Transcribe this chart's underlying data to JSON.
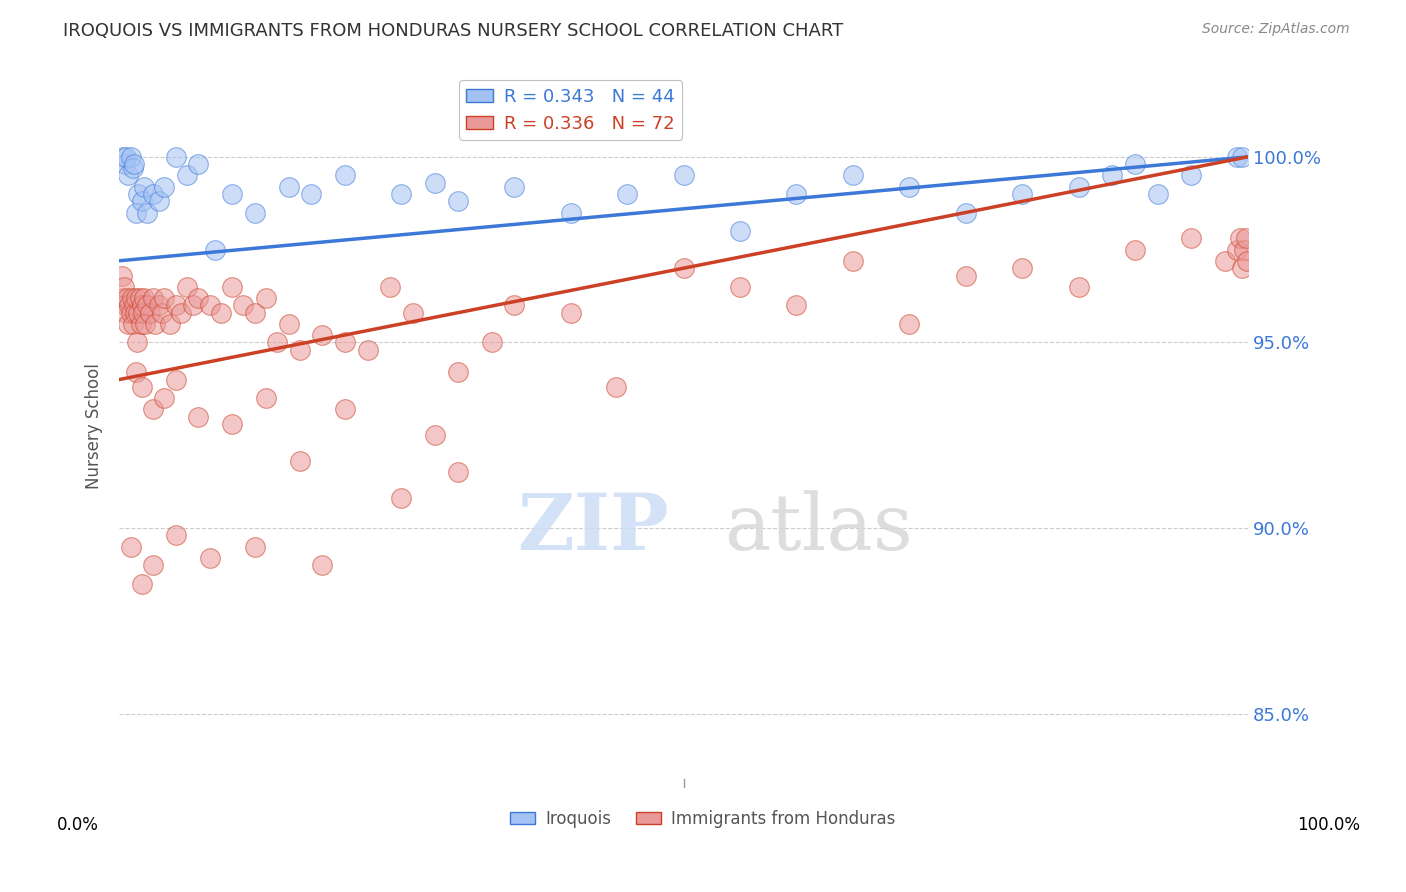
{
  "title": "IROQUOIS VS IMMIGRANTS FROM HONDURAS NURSERY SCHOOL CORRELATION CHART",
  "source": "Source: ZipAtlas.com",
  "ylabel": "Nursery School",
  "ytick_values": [
    85.0,
    90.0,
    95.0,
    100.0
  ],
  "ytick_labels": [
    "85.0%",
    "90.0%",
    "95.0%",
    "100.0%"
  ],
  "xlim": [
    0.0,
    100.0
  ],
  "ylim": [
    83.0,
    102.5
  ],
  "legend_blue_label": "R = 0.343   N = 44",
  "legend_pink_label": "R = 0.336   N = 72",
  "blue_color": "#a4c2f4",
  "pink_color": "#ea9999",
  "blue_line_color": "#3c78d8",
  "pink_line_color": "#cc4125",
  "blue_scatter_x": [
    0.3,
    0.5,
    0.6,
    0.8,
    1.0,
    1.2,
    1.3,
    1.5,
    1.7,
    2.0,
    2.2,
    2.5,
    3.0,
    3.5,
    4.0,
    5.0,
    6.0,
    7.0,
    8.5,
    10.0,
    12.0,
    15.0,
    17.0,
    20.0,
    25.0,
    28.0,
    30.0,
    35.0,
    40.0,
    45.0,
    50.0,
    55.0,
    60.0,
    65.0,
    70.0,
    75.0,
    80.0,
    85.0,
    88.0,
    90.0,
    92.0,
    95.0,
    99.0,
    99.5
  ],
  "blue_scatter_y": [
    100.0,
    99.8,
    100.0,
    99.5,
    100.0,
    99.7,
    99.8,
    98.5,
    99.0,
    98.8,
    99.2,
    98.5,
    99.0,
    98.8,
    99.2,
    100.0,
    99.5,
    99.8,
    97.5,
    99.0,
    98.5,
    99.2,
    99.0,
    99.5,
    99.0,
    99.3,
    98.8,
    99.2,
    98.5,
    99.0,
    99.5,
    98.0,
    99.0,
    99.5,
    99.2,
    98.5,
    99.0,
    99.2,
    99.5,
    99.8,
    99.0,
    99.5,
    100.0,
    100.0
  ],
  "pink_scatter_x": [
    0.2,
    0.3,
    0.4,
    0.5,
    0.6,
    0.7,
    0.8,
    0.9,
    1.0,
    1.1,
    1.2,
    1.3,
    1.4,
    1.5,
    1.6,
    1.7,
    1.8,
    1.9,
    2.0,
    2.1,
    2.2,
    2.3,
    2.5,
    2.7,
    3.0,
    3.2,
    3.5,
    3.8,
    4.0,
    4.5,
    5.0,
    5.5,
    6.0,
    6.5,
    7.0,
    8.0,
    9.0,
    10.0,
    11.0,
    12.0,
    13.0,
    14.0,
    15.0,
    16.0,
    18.0,
    20.0,
    22.0,
    24.0,
    26.0,
    28.0,
    30.0,
    33.0,
    35.0,
    40.0,
    44.0,
    50.0,
    55.0,
    60.0,
    65.0,
    70.0,
    75.0,
    80.0,
    85.0,
    90.0,
    95.0,
    98.0,
    99.0,
    99.3,
    99.5,
    99.7,
    99.8,
    99.9
  ],
  "pink_scatter_y": [
    96.8,
    96.2,
    96.5,
    96.0,
    95.8,
    96.2,
    95.5,
    96.0,
    95.8,
    96.2,
    95.5,
    96.0,
    95.8,
    96.2,
    95.0,
    95.8,
    96.2,
    95.5,
    96.0,
    95.8,
    96.2,
    95.5,
    96.0,
    95.8,
    96.2,
    95.5,
    96.0,
    95.8,
    96.2,
    95.5,
    96.0,
    95.8,
    96.5,
    96.0,
    96.2,
    96.0,
    95.8,
    96.5,
    96.0,
    95.8,
    96.2,
    95.0,
    95.5,
    94.8,
    95.2,
    95.0,
    94.8,
    96.5,
    95.8,
    92.5,
    94.2,
    95.0,
    96.0,
    95.8,
    93.8,
    97.0,
    96.5,
    96.0,
    97.2,
    95.5,
    96.8,
    97.0,
    96.5,
    97.5,
    97.8,
    97.2,
    97.5,
    97.8,
    97.0,
    97.5,
    97.8,
    97.2
  ],
  "pink_extra_low_x": [
    1.5,
    2.0,
    3.0,
    4.0,
    5.0,
    7.0,
    10.0,
    13.0,
    16.0,
    20.0,
    25.0,
    30.0
  ],
  "pink_extra_low_y": [
    94.2,
    93.8,
    93.2,
    93.5,
    94.0,
    93.0,
    92.8,
    93.5,
    91.8,
    93.2,
    90.8,
    91.5
  ],
  "pink_very_low_x": [
    1.0,
    2.0,
    3.0,
    5.0,
    8.0,
    12.0,
    18.0
  ],
  "pink_very_low_y": [
    89.5,
    88.5,
    89.0,
    89.8,
    89.2,
    89.5,
    89.0
  ]
}
